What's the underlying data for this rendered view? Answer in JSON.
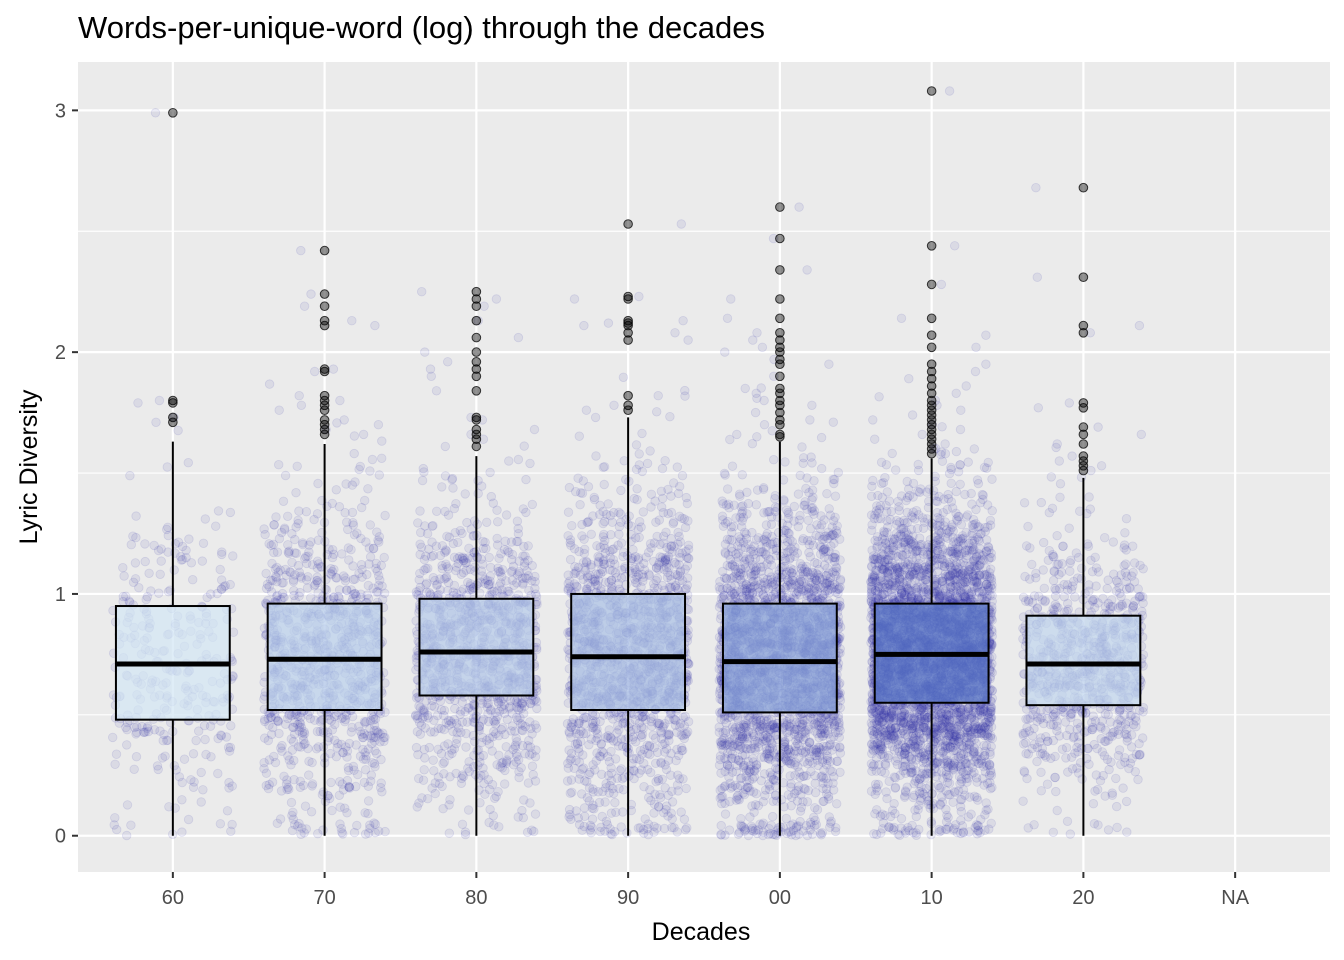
{
  "chart_data": {
    "type": "boxplot",
    "title": "Words-per-unique-word (log) through the decades",
    "xlabel": "Decades",
    "ylabel": "Lyric Diversity",
    "categories": [
      "60",
      "70",
      "80",
      "90",
      "00",
      "10",
      "20",
      "NA"
    ],
    "yticks": [
      0,
      1,
      2,
      3
    ],
    "ylim": [
      -0.15,
      3.2
    ],
    "grid": true,
    "legend": "none",
    "colors": {
      "panel_background": "#EBEBEB",
      "grid_major": "#FFFFFF",
      "jitter_points": "#3333AA",
      "box_outline": "#000000",
      "box_fill_light": "#DDF0F8",
      "box_fill_dark": "#5A78C8"
    },
    "boxes": [
      {
        "category": "60",
        "min": 0.0,
        "q1": 0.48,
        "median": 0.71,
        "q3": 0.95,
        "max": 1.63,
        "outliers": [
          1.71,
          1.73,
          1.79,
          1.8,
          2.99
        ],
        "jitter_count": 300
      },
      {
        "category": "70",
        "min": 0.0,
        "q1": 0.52,
        "median": 0.73,
        "q3": 0.96,
        "max": 1.62,
        "outliers": [
          1.66,
          1.68,
          1.7,
          1.72,
          1.76,
          1.78,
          1.8,
          1.82,
          1.92,
          1.93,
          2.11,
          2.13,
          2.19,
          2.24,
          2.42
        ],
        "jitter_count": 950
      },
      {
        "category": "80",
        "min": 0.0,
        "q1": 0.58,
        "median": 0.76,
        "q3": 0.98,
        "max": 1.57,
        "outliers": [
          1.61,
          1.64,
          1.66,
          1.68,
          1.72,
          1.73,
          1.84,
          1.9,
          1.93,
          1.96,
          2.0,
          2.06,
          2.13,
          2.19,
          2.22,
          2.25
        ],
        "jitter_count": 1100
      },
      {
        "category": "90",
        "min": 0.0,
        "q1": 0.52,
        "median": 0.74,
        "q3": 1.0,
        "max": 1.73,
        "outliers": [
          1.76,
          1.78,
          1.82,
          2.05,
          2.08,
          2.11,
          2.12,
          2.13,
          2.22,
          2.23,
          2.53
        ],
        "jitter_count": 1400
      },
      {
        "category": "00",
        "min": 0.0,
        "q1": 0.51,
        "median": 0.72,
        "q3": 0.96,
        "max": 1.63,
        "outliers": [
          1.65,
          1.66,
          1.7,
          1.72,
          1.75,
          1.78,
          1.8,
          1.83,
          1.85,
          1.9,
          1.95,
          1.97,
          2.0,
          2.02,
          2.05,
          2.08,
          2.14,
          2.22,
          2.34,
          2.47,
          2.6
        ],
        "jitter_count": 2300
      },
      {
        "category": "10",
        "min": 0.0,
        "q1": 0.55,
        "median": 0.75,
        "q3": 0.96,
        "max": 1.56,
        "outliers": [
          1.58,
          1.6,
          1.62,
          1.64,
          1.66,
          1.68,
          1.7,
          1.72,
          1.74,
          1.76,
          1.78,
          1.8,
          1.83,
          1.86,
          1.89,
          1.92,
          1.95,
          2.02,
          2.07,
          2.14,
          2.28,
          2.44,
          3.08
        ],
        "jitter_count": 3600
      },
      {
        "category": "20",
        "min": 0.0,
        "q1": 0.54,
        "median": 0.71,
        "q3": 0.91,
        "max": 1.48,
        "outliers": [
          1.51,
          1.53,
          1.55,
          1.57,
          1.62,
          1.66,
          1.69,
          1.77,
          1.79,
          2.08,
          2.11,
          2.31,
          2.68
        ],
        "jitter_count": 800
      }
    ]
  }
}
